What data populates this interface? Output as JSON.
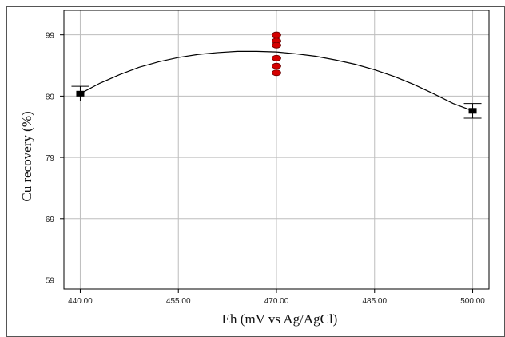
{
  "chart_data": {
    "type": "scatter",
    "title": "",
    "xlabel": "Eh (mV vs Ag/AgCl)",
    "ylabel": "Cu recovery (%)",
    "xlim": [
      437.5,
      502.5
    ],
    "ylim": [
      57.5,
      103
    ],
    "x_ticks": [
      440,
      455,
      470,
      485,
      500
    ],
    "x_tick_labels": [
      "440.00",
      "455.00",
      "470.00",
      "485.00",
      "500.00"
    ],
    "y_ticks": [
      59,
      69,
      79,
      89,
      99
    ],
    "y_tick_labels": [
      "59",
      "69",
      "79",
      "89",
      "99"
    ],
    "grid": true,
    "series": [
      {
        "kind": "fitted-curve",
        "color": "#000000",
        "x": [
          440,
          443,
          446,
          449,
          452,
          455,
          458,
          461,
          464,
          467,
          470,
          473,
          476,
          479,
          482,
          485,
          488,
          491,
          494,
          497,
          500
        ],
        "y": [
          89.4,
          91.1,
          92.5,
          93.7,
          94.6,
          95.3,
          95.8,
          96.1,
          96.3,
          96.3,
          96.2,
          95.9,
          95.5,
          94.9,
          94.2,
          93.3,
          92.2,
          90.9,
          89.4,
          87.8,
          86.6
        ]
      },
      {
        "kind": "design-points",
        "marker": "square",
        "color": "#000000",
        "x": [
          440,
          500
        ],
        "y": [
          89.4,
          86.6
        ],
        "error": [
          1.2,
          1.2
        ]
      },
      {
        "kind": "center-points",
        "marker": "ellipse",
        "color": "#d40000",
        "x": [
          470,
          470,
          470,
          470,
          470,
          470
        ],
        "y": [
          99.0,
          98.0,
          97.3,
          95.2,
          93.9,
          92.8
        ]
      }
    ]
  }
}
